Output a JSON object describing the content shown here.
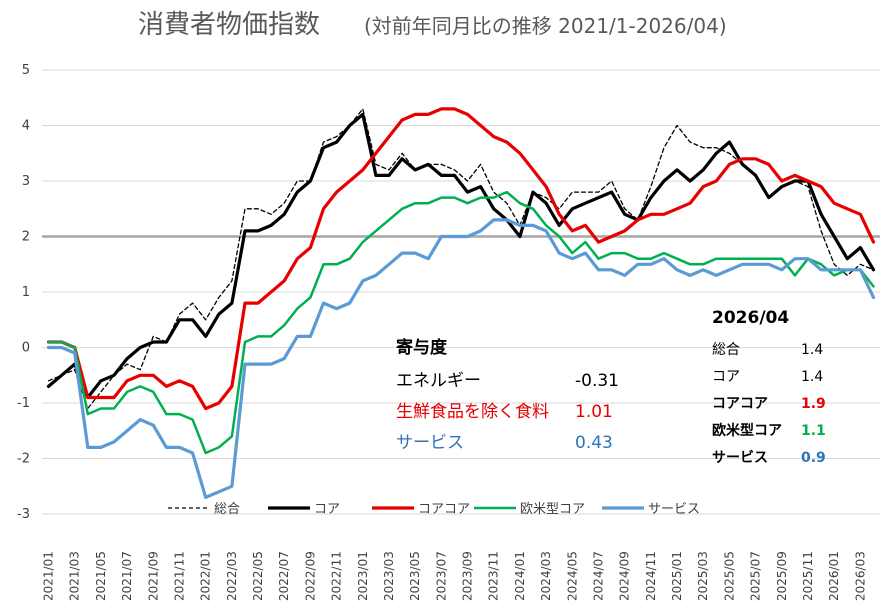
{
  "chart_data": {
    "type": "line",
    "title": "消費者物価指数",
    "subtitle": "(対前年同月比の推移 2021/1-2026/04)",
    "xlabel": "",
    "ylabel": "",
    "ylim": [
      -3,
      5
    ],
    "yticks": [
      5,
      4,
      3,
      2,
      1,
      0,
      -1,
      -2,
      -3
    ],
    "grid": true,
    "reference_line": 2,
    "legend_position": "bottom",
    "x": [
      "2021/01",
      "2021/02",
      "2021/03",
      "2021/04",
      "2021/05",
      "2021/06",
      "2021/07",
      "2021/08",
      "2021/09",
      "2021/10",
      "2021/11",
      "2021/12",
      "2022/01",
      "2022/02",
      "2022/03",
      "2022/04",
      "2022/05",
      "2022/06",
      "2022/07",
      "2022/08",
      "2022/09",
      "2022/10",
      "2022/11",
      "2022/12",
      "2023/01",
      "2023/02",
      "2023/03",
      "2023/04",
      "2023/05",
      "2023/06",
      "2023/07",
      "2023/08",
      "2023/09",
      "2023/10",
      "2023/11",
      "2023/12",
      "2024/01",
      "2024/02",
      "2024/03",
      "2024/04",
      "2024/05",
      "2024/06",
      "2024/07",
      "2024/08",
      "2024/09",
      "2024/10",
      "2024/11",
      "2024/12",
      "2025/01",
      "2025/02",
      "2025/03",
      "2025/04",
      "2025/05",
      "2025/06",
      "2025/07",
      "2025/08",
      "2025/09",
      "2025/10",
      "2025/11",
      "2025/12",
      "2026/01",
      "2026/02",
      "2026/03",
      "2026/04"
    ],
    "x_tick_labels": [
      "2021/01",
      "2021/03",
      "2021/05",
      "2021/07",
      "2021/09",
      "2021/11",
      "2022/01",
      "2022/03",
      "2022/05",
      "2022/07",
      "2022/09",
      "2022/11",
      "2023/01",
      "2023/03",
      "2023/05",
      "2023/07",
      "2023/09",
      "2023/11",
      "2024/01",
      "2024/03",
      "2024/05",
      "2024/07",
      "2024/09",
      "2024/11",
      "2025/01",
      "2025/03",
      "2025/05",
      "2025/07",
      "2025/09",
      "2025/11",
      "2026/01",
      "2026/03"
    ],
    "series": [
      {
        "name": "総合",
        "color": "#000000",
        "dashed": true,
        "width": 1.3,
        "values": [
          -0.6,
          -0.5,
          -0.4,
          -1.1,
          -0.8,
          -0.5,
          -0.3,
          -0.4,
          0.2,
          0.1,
          0.6,
          0.8,
          0.5,
          0.9,
          1.2,
          2.5,
          2.5,
          2.4,
          2.6,
          3.0,
          3.0,
          3.7,
          3.8,
          4.0,
          4.3,
          3.3,
          3.2,
          3.5,
          3.2,
          3.3,
          3.3,
          3.2,
          3.0,
          3.3,
          2.8,
          2.6,
          2.2,
          2.8,
          2.7,
          2.5,
          2.8,
          2.8,
          2.8,
          3.0,
          2.5,
          2.3,
          2.9,
          3.6,
          4.0,
          3.7,
          3.6,
          3.6,
          3.5,
          3.3,
          3.1,
          2.7,
          2.9,
          3.0,
          2.9,
          2.1,
          1.5,
          1.3,
          1.5,
          1.4
        ]
      },
      {
        "name": "コア",
        "color": "#000000",
        "dashed": false,
        "width": 3.2,
        "values": [
          -0.7,
          -0.5,
          -0.3,
          -0.9,
          -0.6,
          -0.5,
          -0.2,
          0.0,
          0.1,
          0.1,
          0.5,
          0.5,
          0.2,
          0.6,
          0.8,
          2.1,
          2.1,
          2.2,
          2.4,
          2.8,
          3.0,
          3.6,
          3.7,
          4.0,
          4.2,
          3.1,
          3.1,
          3.4,
          3.2,
          3.3,
          3.1,
          3.1,
          2.8,
          2.9,
          2.5,
          2.3,
          2.0,
          2.8,
          2.6,
          2.2,
          2.5,
          2.6,
          2.7,
          2.8,
          2.4,
          2.3,
          2.7,
          3.0,
          3.2,
          3.0,
          3.2,
          3.5,
          3.7,
          3.3,
          3.1,
          2.7,
          2.9,
          3.0,
          3.0,
          2.4,
          2.0,
          1.6,
          1.8,
          1.4
        ]
      },
      {
        "name": "コアコア",
        "color": "#e60000",
        "dashed": false,
        "width": 3.2,
        "values": [
          0.1,
          0.1,
          0.0,
          -0.9,
          -0.9,
          -0.9,
          -0.6,
          -0.5,
          -0.5,
          -0.7,
          -0.6,
          -0.7,
          -1.1,
          -1.0,
          -0.7,
          0.8,
          0.8,
          1.0,
          1.2,
          1.6,
          1.8,
          2.5,
          2.8,
          3.0,
          3.2,
          3.5,
          3.8,
          4.1,
          4.2,
          4.2,
          4.3,
          4.3,
          4.2,
          4.0,
          3.8,
          3.7,
          3.5,
          3.2,
          2.9,
          2.4,
          2.1,
          2.2,
          1.9,
          2.0,
          2.1,
          2.3,
          2.4,
          2.4,
          2.5,
          2.6,
          2.9,
          3.0,
          3.3,
          3.4,
          3.4,
          3.3,
          3.0,
          3.1,
          3.0,
          2.9,
          2.6,
          2.5,
          2.4,
          1.9
        ]
      },
      {
        "name": "欧米型コア",
        "color": "#00b050",
        "dashed": false,
        "width": 2.5,
        "values": [
          0.1,
          0.1,
          0.0,
          -1.2,
          -1.1,
          -1.1,
          -0.8,
          -0.7,
          -0.8,
          -1.2,
          -1.2,
          -1.3,
          -1.9,
          -1.8,
          -1.6,
          0.1,
          0.2,
          0.2,
          0.4,
          0.7,
          0.9,
          1.5,
          1.5,
          1.6,
          1.9,
          2.1,
          2.3,
          2.5,
          2.6,
          2.6,
          2.7,
          2.7,
          2.6,
          2.7,
          2.7,
          2.8,
          2.6,
          2.5,
          2.2,
          2.0,
          1.7,
          1.9,
          1.6,
          1.7,
          1.7,
          1.6,
          1.6,
          1.7,
          1.6,
          1.5,
          1.5,
          1.6,
          1.6,
          1.6,
          1.6,
          1.6,
          1.6,
          1.3,
          1.6,
          1.5,
          1.3,
          1.4,
          1.4,
          1.1
        ]
      },
      {
        "name": "サービス",
        "color": "#5b9bd5",
        "dashed": false,
        "width": 3.2,
        "values": [
          0.0,
          0.0,
          -0.1,
          -1.8,
          -1.8,
          -1.7,
          -1.5,
          -1.3,
          -1.4,
          -1.8,
          -1.8,
          -1.9,
          -2.7,
          -2.6,
          -2.5,
          -0.3,
          -0.3,
          -0.3,
          -0.2,
          0.2,
          0.2,
          0.8,
          0.7,
          0.8,
          1.2,
          1.3,
          1.5,
          1.7,
          1.7,
          1.6,
          2.0,
          2.0,
          2.0,
          2.1,
          2.3,
          2.3,
          2.2,
          2.2,
          2.1,
          1.7,
          1.6,
          1.7,
          1.4,
          1.4,
          1.3,
          1.5,
          1.5,
          1.6,
          1.4,
          1.3,
          1.4,
          1.3,
          1.4,
          1.5,
          1.5,
          1.5,
          1.4,
          1.6,
          1.6,
          1.4,
          1.4,
          1.4,
          1.4,
          0.9
        ]
      }
    ]
  },
  "contribution_box": {
    "title": "寄与度",
    "rows": [
      {
        "label": "エネルギー",
        "value": "-0.31",
        "color": "#000000"
      },
      {
        "label": "生鮮食品を除く食料",
        "value": "1.01",
        "color": "#e60000"
      },
      {
        "label": "サービス",
        "value": "0.43",
        "color": "#2e75b6"
      }
    ]
  },
  "latest_box": {
    "title": "2026/04",
    "rows": [
      {
        "label": "総合",
        "value": "1.4",
        "color": "#000000",
        "bold": false
      },
      {
        "label": "コア",
        "value": "1.4",
        "color": "#000000",
        "bold": false
      },
      {
        "label": "コアコア",
        "value": "1.9",
        "color": "#e60000",
        "bold": true
      },
      {
        "label": "欧米型コア",
        "value": "1.1",
        "color": "#00b050",
        "bold": true
      },
      {
        "label": "サービス",
        "value": "0.9",
        "color": "#2e75b6",
        "bold": true
      }
    ]
  }
}
